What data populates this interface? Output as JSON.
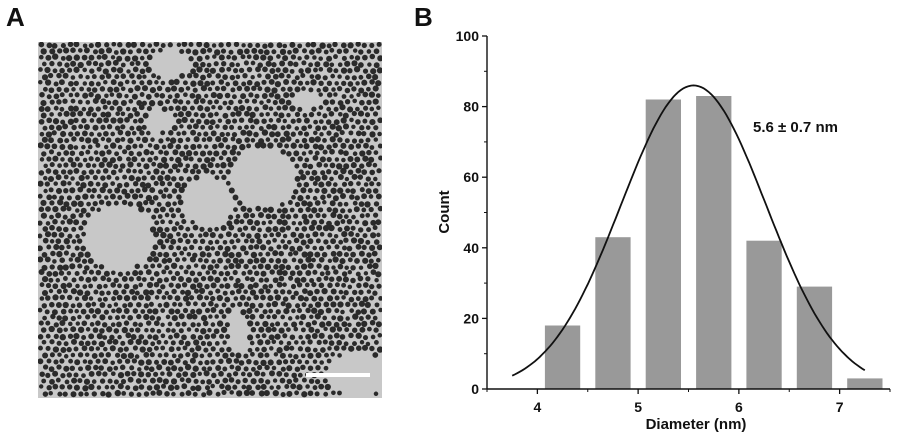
{
  "panels": {
    "a_label": "A",
    "b_label": "B"
  },
  "micrograph": {
    "background_color": "#c8c8c8",
    "particle_color": "#2a2a2a",
    "scale_bar_color": "#ffffff"
  },
  "chart_data": {
    "type": "bar",
    "xlabel": "Diameter (nm)",
    "ylabel": "Count",
    "annotation": "5.6 ± 0.7 nm",
    "xlim": [
      3.5,
      7.5
    ],
    "ylim": [
      0,
      100
    ],
    "x_ticks": [
      4,
      5,
      6,
      7
    ],
    "y_ticks": [
      0,
      20,
      40,
      60,
      80,
      100
    ],
    "x_tick_labels": [
      "4",
      "5",
      "6",
      "7"
    ],
    "y_tick_labels": [
      "0",
      "20",
      "40",
      "60",
      "80",
      "100"
    ],
    "bar_width": 0.35,
    "bars": [
      {
        "x": 4.25,
        "value": 18
      },
      {
        "x": 4.75,
        "value": 43
      },
      {
        "x": 5.25,
        "value": 82
      },
      {
        "x": 5.75,
        "value": 83
      },
      {
        "x": 6.25,
        "value": 42
      },
      {
        "x": 6.75,
        "value": 29
      },
      {
        "x": 7.25,
        "value": 3
      }
    ],
    "fit": {
      "type": "gaussian",
      "amplitude": 86,
      "mean": 5.55,
      "sigma": 0.72,
      "x_range": [
        3.75,
        7.25
      ]
    },
    "colors": {
      "bar": "#999999",
      "fit_curve": "#111111",
      "axis": "#111111"
    }
  }
}
